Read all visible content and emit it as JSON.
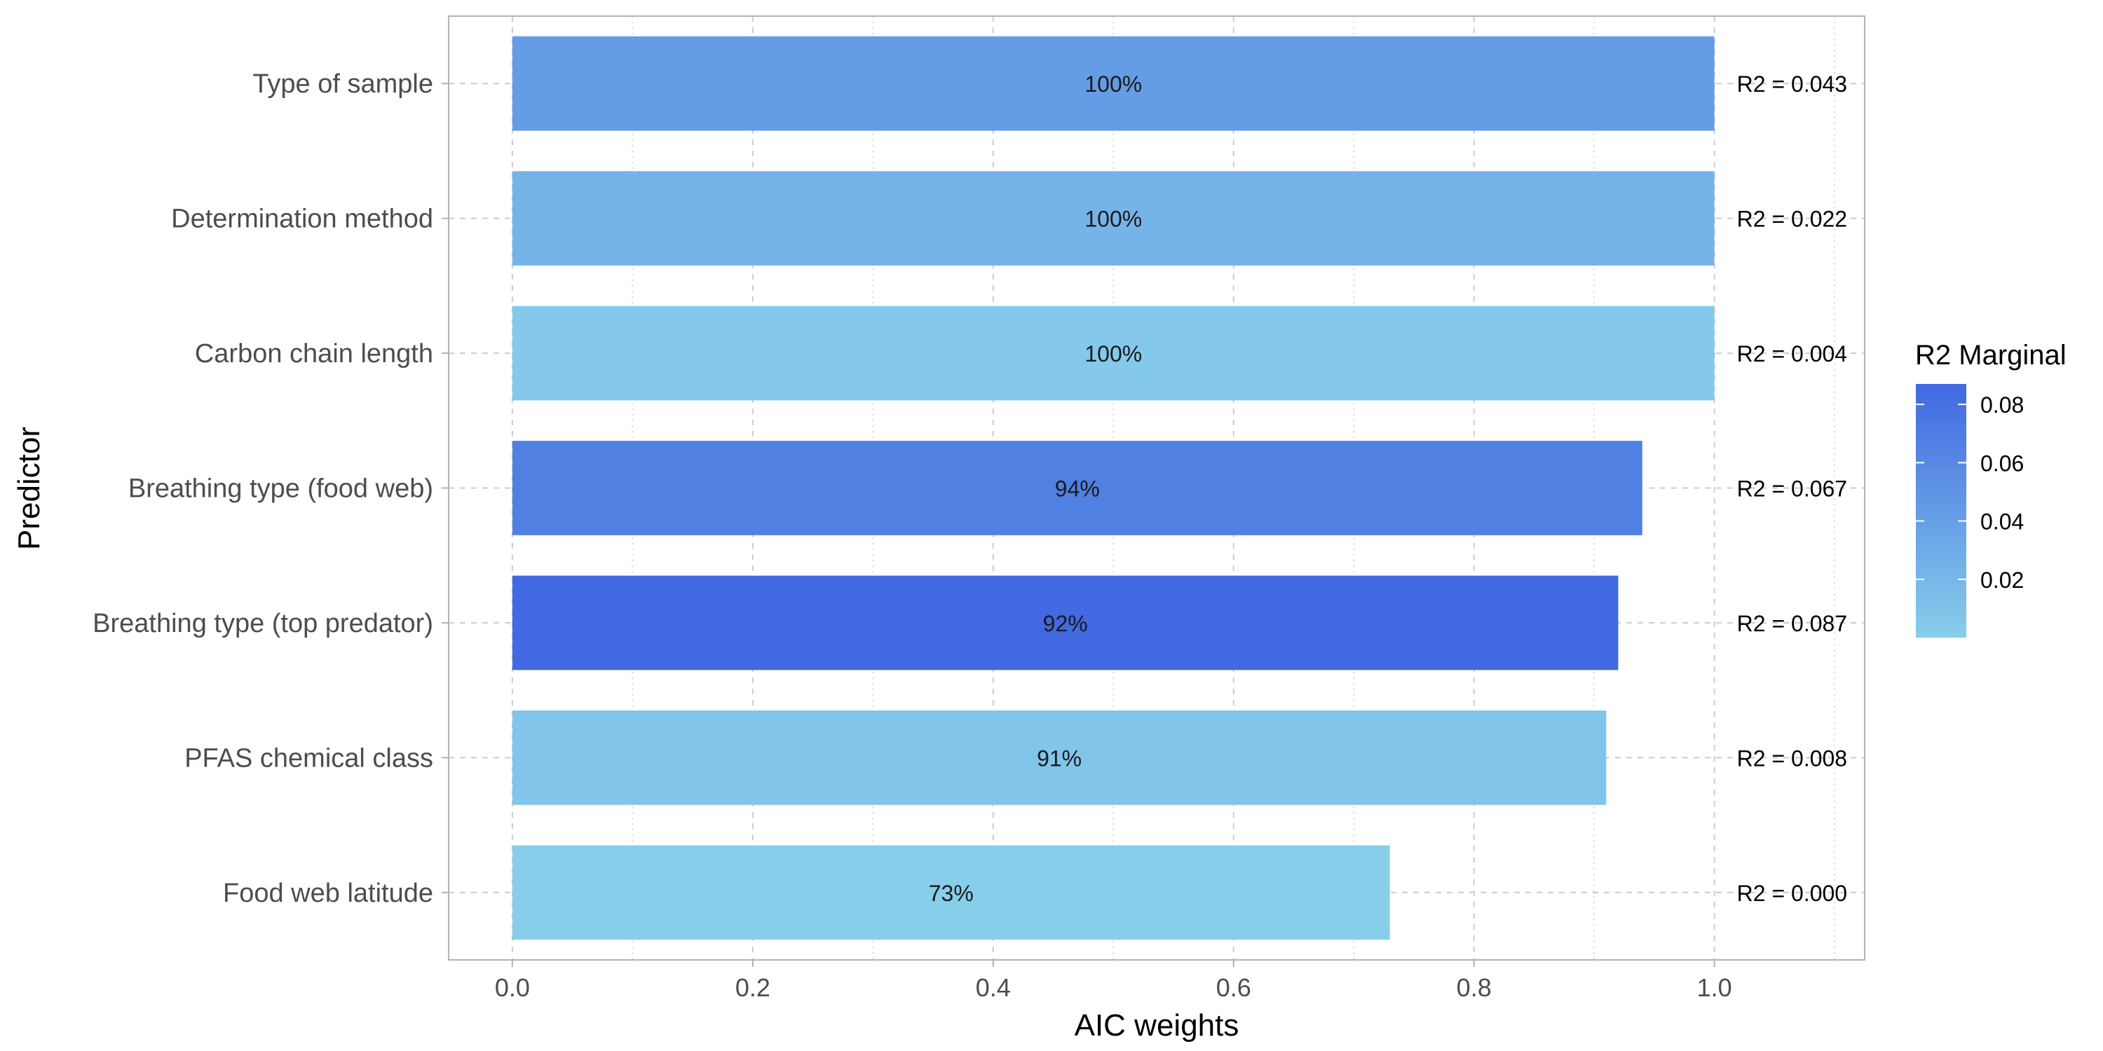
{
  "chart_data": {
    "type": "bar",
    "orientation": "horizontal",
    "xlabel": "AIC weights",
    "ylabel": "Predictor",
    "xlim": [
      -0.053,
      1.125
    ],
    "x_ticks": [
      "0.0",
      "0.2",
      "0.4",
      "0.6",
      "0.8",
      "1.0"
    ],
    "grid": true,
    "categories": [
      "Type of sample",
      "Determination method",
      "Carbon chain length",
      "Breathing type (food web)",
      "Breathing type (top predator)",
      "PFAS chemical class",
      "Food web latitude"
    ],
    "values": [
      1.0,
      1.0,
      1.0,
      0.94,
      0.92,
      0.91,
      0.73
    ],
    "value_labels": [
      "100%",
      "100%",
      "100%",
      "94%",
      "92%",
      "91%",
      "73%"
    ],
    "r2_values": [
      0.043,
      0.022,
      0.004,
      0.067,
      0.087,
      0.008,
      0.0
    ],
    "r2_labels": [
      "R2 = 0.043",
      "R2 = 0.022",
      "R2 = 0.004",
      "R2 = 0.067",
      "R2 = 0.087",
      "R2 = 0.008",
      "R2 = 0.000"
    ],
    "legend": {
      "title": "R2 Marginal",
      "placement": "right",
      "ticks": [
        0.02,
        0.04,
        0.06,
        0.08
      ],
      "tick_labels": [
        "0.02",
        "0.04",
        "0.06",
        "0.08"
      ],
      "range": [
        0.0,
        0.087
      ],
      "color_low": "#87ceeb",
      "color_high": "#4169e1"
    }
  }
}
